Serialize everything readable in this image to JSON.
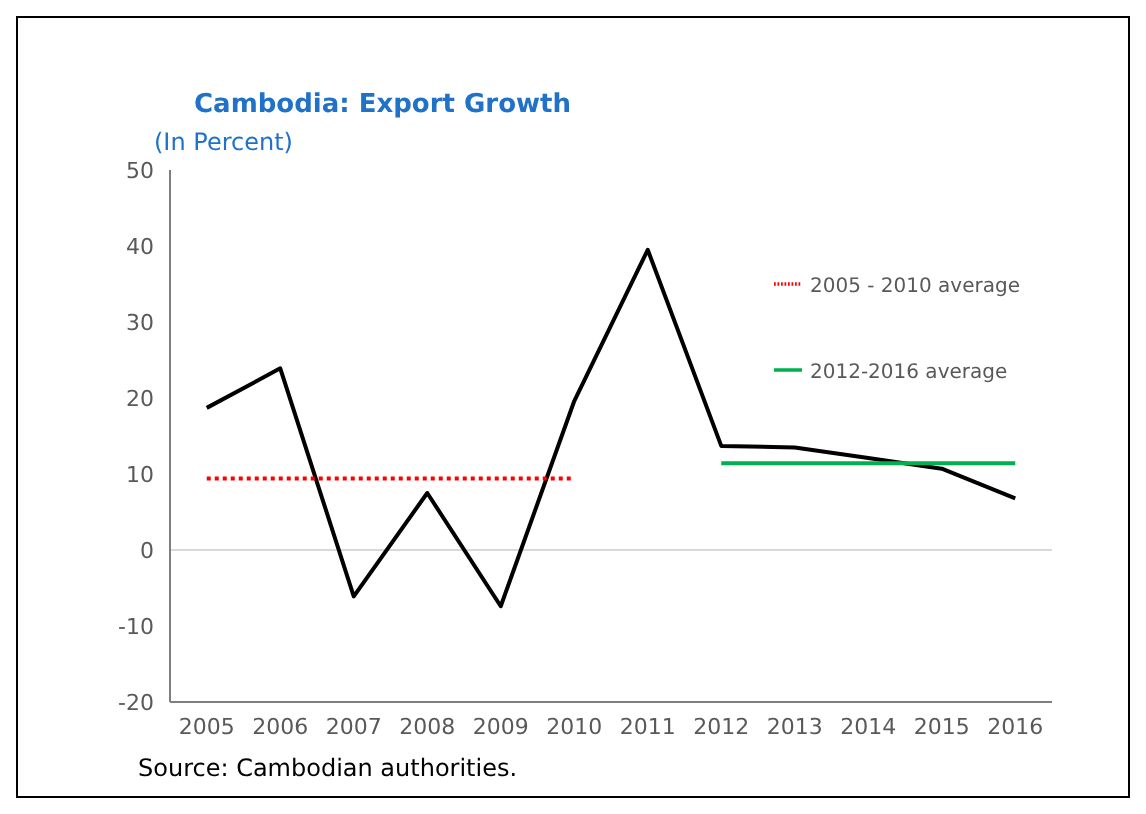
{
  "chart_data": {
    "type": "line",
    "title": "Cambodia: Export Growth",
    "subtitle": "(In Percent)",
    "categories": [
      "2005",
      "2006",
      "2007",
      "2008",
      "2009",
      "2010",
      "2011",
      "2012",
      "2013",
      "2014",
      "2015",
      "2016"
    ],
    "series": [
      {
        "color": "#000000",
        "values": [
          18.7,
          23.9,
          -6.1,
          7.5,
          -7.4,
          19.6,
          39.5,
          13.7,
          13.5,
          12.1,
          10.7,
          6.8
        ]
      },
      {
        "name": "2005 - 2010 average",
        "color": "#ff0000",
        "line_style": "dotted",
        "values": [
          9.4,
          9.4,
          9.4,
          9.4,
          9.4,
          9.4,
          null,
          null,
          null,
          null,
          null,
          null
        ]
      },
      {
        "name": "2012-2016 average",
        "color": "#00b050",
        "line_style": "solid",
        "values": [
          null,
          null,
          null,
          null,
          null,
          null,
          null,
          11.4,
          11.4,
          11.4,
          11.4,
          11.4
        ]
      }
    ],
    "ylim": [
      -20,
      50
    ],
    "yticks": [
      -20,
      -10,
      0,
      10,
      20,
      30,
      40,
      50
    ],
    "ref_lines": [
      {
        "axis": "y",
        "value": 0,
        "color": "#d9d9d9"
      }
    ],
    "grid": false,
    "legend": "top right",
    "marker": "none",
    "annotations": [
      "Source: Cambodian authorities."
    ]
  }
}
